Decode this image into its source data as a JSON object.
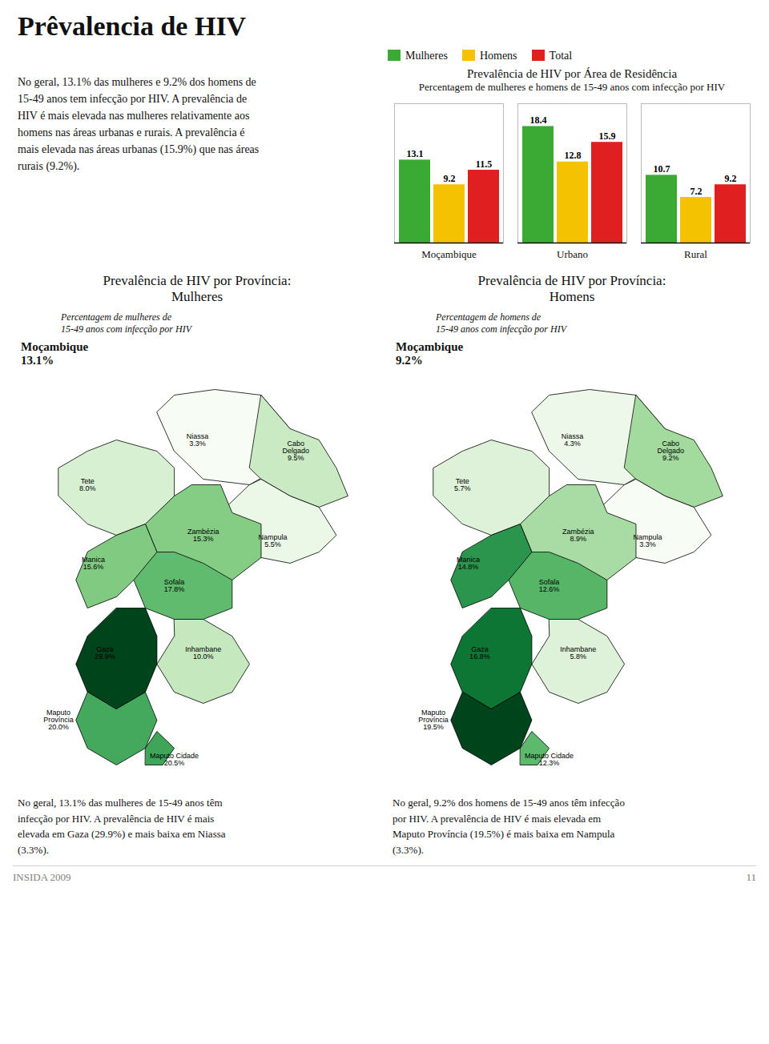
{
  "title": "Prêvalencia de HIV",
  "annotations": [
    "No geral, 13.1% das mulheres e 9.2% dos homens de\n15-49 anos tem infecção por HIV. A prevalência de\nHIV é mais elevada nas mulheres relativamente aos\nhomens nas áreas urbanas e rurais. A prevalência é\nmais elevada nas áreas urbanas (15.9%) que nas áreas\nrurais (9.2%).",
    "INSIDA 2009",
    "11"
  ],
  "chart_data": [
    {
      "type": "bar",
      "title": "Prevalência de HIV por Área de Residência",
      "subtitle": "Percentagem de mulheres e homens de 15-49 anos com infecção por HIV",
      "categories": [
        "Moçambique",
        "Urbano",
        "Rural"
      ],
      "series": [
        {
          "name": "Mulheres",
          "color": "#3aaa35",
          "values": [
            13.1,
            18.4,
            10.7
          ]
        },
        {
          "name": "Homens",
          "color": "#f5c200",
          "values": [
            9.2,
            12.8,
            7.2
          ]
        },
        {
          "name": "Total",
          "color": "#e02020",
          "values": [
            11.5,
            15.9,
            9.2
          ]
        }
      ],
      "ylim": [
        0,
        22
      ],
      "tick_labels": "x",
      "data_labels": true,
      "legend": "upper left",
      "grid": false
    },
    {
      "type": "choropleth",
      "title": "Prevalência de HIV por Província:\nMulheres",
      "subtitle": "Percentagem de mulheres de\n15-49 anos com infecção por HIV",
      "annotations": [
        "Moçambique\n13.1%",
        "No geral, 13.1% das mulheres de 15-49 anos têm\ninfecção por HIV. A prevalência de HIV é mais\nelevada em Gaza (29.9%) e mais baixa em Niassa\n(3.3%)."
      ],
      "categories": [
        "Niassa",
        "Cabo\nDelgado",
        "Nampula",
        "Zambézia",
        "Tete",
        "Sofala",
        "Manica",
        "Inhambane",
        "Gaza",
        "Maputo\nProvíncia",
        "Maputo Cidade"
      ],
      "values": [
        3.3,
        9.5,
        5.5,
        15.3,
        8.0,
        17.8,
        15.6,
        10.0,
        29.9,
        20.0,
        20.5
      ],
      "value_labels": [
        "3.3%",
        "9.5%",
        "5.5%",
        "15.3%",
        "8.0%",
        "17.8%",
        "15.6%",
        "10.0%",
        "29.9%",
        "20.0%",
        "20.5%"
      ],
      "data_labels": true
    },
    {
      "type": "choropleth",
      "title": "Prevalência de HIV por Província:\nHomens",
      "subtitle": "Percentagem de homens de\n15-49 anos com infecção por HIV",
      "annotations": [
        "Moçambique\n9.2%",
        "No geral, 9.2% dos homens de 15-49 anos têm infecção\npor HIV. A prevalência de HIV é mais elevada em\nMaputo Província (19.5%) é mais baixa em Nampula\n(3.3%)."
      ],
      "categories": [
        "Niassa",
        "Cabo\nDelgado",
        "Nampula",
        "Zambézia",
        "Tete",
        "Sofala",
        "Manica",
        "Inhambane",
        "Gaza",
        "Maputo\nProvíncia",
        "Maputo Cidade"
      ],
      "values": [
        4.3,
        9.2,
        3.3,
        8.9,
        5.7,
        12.6,
        14.8,
        5.8,
        16.8,
        19.5,
        12.3
      ],
      "value_labels": [
        "4.3%",
        "9.2%",
        "3.3%",
        "8.9%",
        "5.7%",
        "12.6%",
        "14.8%",
        "5.8%",
        "16.8%",
        "19.5%",
        "12.3%"
      ],
      "data_labels": true
    }
  ]
}
